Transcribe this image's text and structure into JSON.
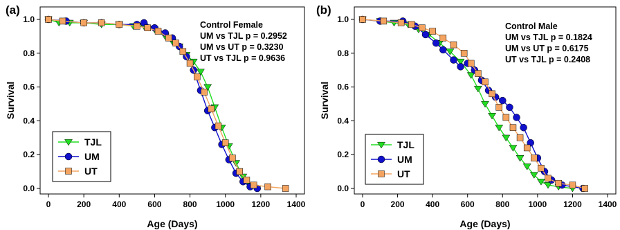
{
  "colors": {
    "TJL": "#22dd22",
    "UM": "#1010cc",
    "UT": "#f4a460"
  },
  "chart_data": [
    {
      "type": "line",
      "panel_label": "(a)",
      "xlabel": "Age (Days)",
      "ylabel": "Survival",
      "xlim": [
        0,
        1400
      ],
      "ylim": [
        0,
        1.0
      ],
      "xticks": [
        0,
        200,
        400,
        600,
        800,
        1000,
        1200,
        1400
      ],
      "yticks": [
        "0.0",
        "0.2",
        "0.4",
        "0.6",
        "0.8",
        "1.0"
      ],
      "x_tick_labels": [
        "0",
        "200",
        "400",
        "600",
        "800",
        "1000",
        "1200",
        "1400"
      ],
      "annotation": [
        "Control Female",
        "UM vs TJL  p = 0.2952",
        "UM vs UT   p = 0.3230",
        "UT vs TJL  p = 0.9636"
      ],
      "legend": [
        "TJL",
        "UM",
        "UT"
      ],
      "legend_position": "bottom-left",
      "series": [
        {
          "name": "TJL",
          "marker": "triangle-down",
          "points": [
            [
              0,
              1.0
            ],
            [
              60,
              0.98
            ],
            [
              120,
              0.98
            ],
            [
              200,
              0.98
            ],
            [
              300,
              0.97
            ],
            [
              400,
              0.97
            ],
            [
              480,
              0.96
            ],
            [
              540,
              0.96
            ],
            [
              600,
              0.94
            ],
            [
              660,
              0.9
            ],
            [
              700,
              0.87
            ],
            [
              740,
              0.84
            ],
            [
              780,
              0.79
            ],
            [
              820,
              0.75
            ],
            [
              860,
              0.69
            ],
            [
              900,
              0.6
            ],
            [
              940,
              0.48
            ],
            [
              980,
              0.36
            ],
            [
              1020,
              0.25
            ],
            [
              1060,
              0.15
            ],
            [
              1100,
              0.07
            ],
            [
              1140,
              0.02
            ],
            [
              1180,
              0.0
            ]
          ]
        },
        {
          "name": "UM",
          "marker": "circle",
          "points": [
            [
              0,
              1.0
            ],
            [
              100,
              0.99
            ],
            [
              200,
              0.98
            ],
            [
              300,
              0.98
            ],
            [
              400,
              0.97
            ],
            [
              500,
              0.97
            ],
            [
              540,
              0.98
            ],
            [
              600,
              0.95
            ],
            [
              660,
              0.92
            ],
            [
              700,
              0.89
            ],
            [
              740,
              0.84
            ],
            [
              780,
              0.78
            ],
            [
              820,
              0.7
            ],
            [
              860,
              0.58
            ],
            [
              900,
              0.46
            ],
            [
              940,
              0.36
            ],
            [
              980,
              0.26
            ],
            [
              1020,
              0.17
            ],
            [
              1060,
              0.09
            ],
            [
              1100,
              0.04
            ],
            [
              1140,
              0.01
            ],
            [
              1180,
              0.0
            ]
          ]
        },
        {
          "name": "UT",
          "marker": "square",
          "points": [
            [
              0,
              1.0
            ],
            [
              80,
              0.99
            ],
            [
              200,
              0.98
            ],
            [
              300,
              0.98
            ],
            [
              400,
              0.97
            ],
            [
              500,
              0.96
            ],
            [
              560,
              0.95
            ],
            [
              620,
              0.93
            ],
            [
              680,
              0.89
            ],
            [
              720,
              0.86
            ],
            [
              760,
              0.81
            ],
            [
              800,
              0.74
            ],
            [
              840,
              0.66
            ],
            [
              880,
              0.57
            ],
            [
              920,
              0.47
            ],
            [
              960,
              0.37
            ],
            [
              1000,
              0.27
            ],
            [
              1040,
              0.18
            ],
            [
              1080,
              0.1
            ],
            [
              1120,
              0.05
            ],
            [
              1160,
              0.02
            ],
            [
              1240,
              0.01
            ],
            [
              1340,
              0.0
            ]
          ]
        }
      ]
    },
    {
      "type": "line",
      "panel_label": "(b)",
      "xlabel": "Age (Days)",
      "ylabel": "Survival",
      "xlim": [
        0,
        1400
      ],
      "ylim": [
        0,
        1.0
      ],
      "xticks": [
        0,
        200,
        400,
        600,
        800,
        1000,
        1200,
        1400
      ],
      "yticks": [
        "0.0",
        "0.2",
        "0.4",
        "0.6",
        "0.8",
        "1.0"
      ],
      "x_tick_labels": [
        "0",
        "200",
        "400",
        "600",
        "800",
        "1000",
        "1200",
        "1400"
      ],
      "annotation": [
        "Control Male",
        "UM vs TJL  p = 0.1824",
        "UM vs UT   p = 0.6175",
        "UT vs TJL  p = 0.2408"
      ],
      "legend": [
        "TJL",
        "UM",
        "UT"
      ],
      "legend_position": "bottom-left",
      "series": [
        {
          "name": "TJL",
          "marker": "triangle-down",
          "points": [
            [
              0,
              1.0
            ],
            [
              100,
              0.99
            ],
            [
              180,
              0.98
            ],
            [
              260,
              0.97
            ],
            [
              320,
              0.94
            ],
            [
              380,
              0.91
            ],
            [
              440,
              0.86
            ],
            [
              500,
              0.81
            ],
            [
              560,
              0.75
            ],
            [
              620,
              0.67
            ],
            [
              660,
              0.59
            ],
            [
              700,
              0.5
            ],
            [
              740,
              0.43
            ],
            [
              780,
              0.36
            ],
            [
              820,
              0.3
            ],
            [
              860,
              0.24
            ],
            [
              900,
              0.18
            ],
            [
              940,
              0.13
            ],
            [
              980,
              0.08
            ],
            [
              1020,
              0.04
            ],
            [
              1060,
              0.02
            ],
            [
              1120,
              0.01
            ],
            [
              1200,
              0.0
            ]
          ]
        },
        {
          "name": "UM",
          "marker": "circle",
          "points": [
            [
              0,
              1.0
            ],
            [
              100,
              0.99
            ],
            [
              230,
              0.99
            ],
            [
              300,
              0.96
            ],
            [
              360,
              0.91
            ],
            [
              420,
              0.86
            ],
            [
              460,
              0.82
            ],
            [
              520,
              0.76
            ],
            [
              560,
              0.72
            ],
            [
              600,
              0.74
            ],
            [
              640,
              0.7
            ],
            [
              680,
              0.64
            ],
            [
              720,
              0.58
            ],
            [
              760,
              0.54
            ],
            [
              800,
              0.52
            ],
            [
              840,
              0.48
            ],
            [
              880,
              0.42
            ],
            [
              920,
              0.36
            ],
            [
              960,
              0.27
            ],
            [
              1000,
              0.18
            ],
            [
              1040,
              0.1
            ],
            [
              1080,
              0.05
            ],
            [
              1140,
              0.02
            ],
            [
              1260,
              0.0
            ]
          ]
        },
        {
          "name": "UT",
          "marker": "square",
          "points": [
            [
              0,
              1.0
            ],
            [
              120,
              0.99
            ],
            [
              220,
              0.98
            ],
            [
              280,
              0.97
            ],
            [
              340,
              0.95
            ],
            [
              400,
              0.93
            ],
            [
              460,
              0.89
            ],
            [
              520,
              0.85
            ],
            [
              580,
              0.8
            ],
            [
              620,
              0.74
            ],
            [
              660,
              0.68
            ],
            [
              700,
              0.63
            ],
            [
              740,
              0.56
            ],
            [
              780,
              0.48
            ],
            [
              820,
              0.42
            ],
            [
              860,
              0.36
            ],
            [
              900,
              0.3
            ],
            [
              940,
              0.24
            ],
            [
              980,
              0.18
            ],
            [
              1020,
              0.12
            ],
            [
              1060,
              0.06
            ],
            [
              1120,
              0.03
            ],
            [
              1200,
              0.02
            ],
            [
              1270,
              0.0
            ]
          ]
        }
      ]
    }
  ]
}
